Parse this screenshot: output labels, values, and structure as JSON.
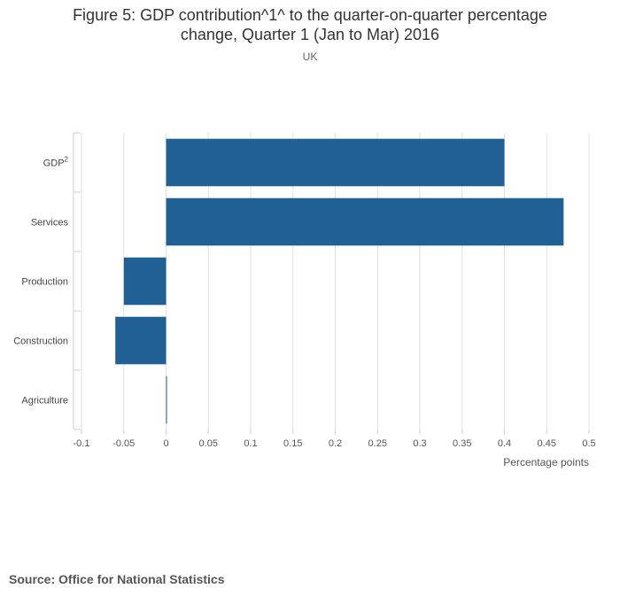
{
  "chart_data": {
    "type": "bar",
    "orientation": "horizontal",
    "title_line1": "Figure 5: GDP contribution^1^ to the quarter-on-quarter percentage",
    "title_line2": "change, Quarter 1 (Jan to Mar) 2016",
    "subtitle": "UK",
    "categories": [
      {
        "label": "GDP",
        "sup": "2"
      },
      {
        "label": "Services",
        "sup": ""
      },
      {
        "label": "Production",
        "sup": ""
      },
      {
        "label": "Construction",
        "sup": ""
      },
      {
        "label": "Agriculture",
        "sup": ""
      }
    ],
    "values": [
      0.4,
      0.47,
      -0.05,
      -0.06,
      0.0
    ],
    "xlim": [
      -0.1,
      0.5
    ],
    "xticks": [
      "-0.1",
      "-0.05",
      "0",
      "0.05",
      "0.1",
      "0.15",
      "0.2",
      "0.25",
      "0.3",
      "0.35",
      "0.4",
      "0.45",
      "0.5"
    ],
    "xlabel": "Percentage points",
    "grid": true,
    "bar_color": "#206095"
  },
  "source": "Source: Office for National Statistics"
}
